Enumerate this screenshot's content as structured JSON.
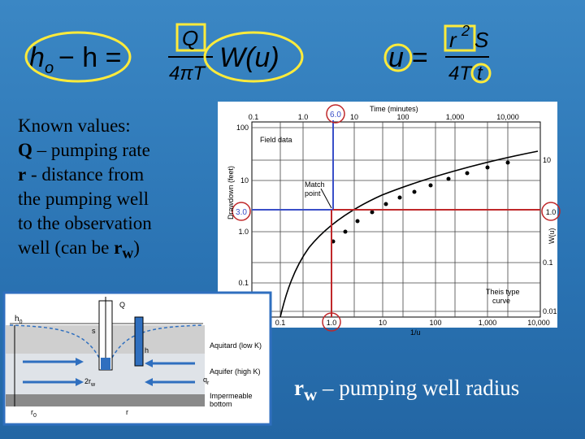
{
  "equations": {
    "theis": {
      "lhs_h": "h",
      "lhs_sub": "o",
      "lhs_rest": "− h =",
      "numerator": "Q",
      "denominator": "4πT",
      "function": "W(u)"
    },
    "u": {
      "lhs": "u =",
      "r": "r",
      "exponent": "2",
      "s": "S",
      "denominator": "4T",
      "t": "t"
    }
  },
  "known_values": {
    "heading": "Known values:",
    "items": [
      {
        "term": "Q",
        "text": " – pumping rate"
      },
      {
        "term": "r",
        "text_lines": [
          " - distance from",
          "the pumping well",
          "to the observation",
          "well (can be "
        ],
        "sub_term": "r",
        "sub": "w",
        "close": ")"
      }
    ]
  },
  "type_curve_figure": {
    "top_axis_label": "Time (minutes)",
    "top_ticks": [
      "0.1",
      "1.0",
      "10",
      "100",
      "1,000",
      "10,000"
    ],
    "left_axis_label": "Drawdown (feet)",
    "left_ticks": [
      "100",
      "10",
      "1.0",
      "0.1"
    ],
    "right_axis_label": "W(u)",
    "right_ticks": [
      "10",
      "1.0",
      "0.1",
      "0.01"
    ],
    "bottom_axis_label": "1/u",
    "bottom_ticks": [
      "0.1",
      "1.0",
      "10",
      "100",
      "1,000",
      "10,000"
    ],
    "field_data": "Field data",
    "match_point": [
      "Match",
      "point"
    ],
    "type_curve": [
      "Theis type",
      "curve"
    ],
    "match_values": {
      "time": "6.0",
      "drawdown": "3.0",
      "inverse_u": "1.0",
      "w_u": "1.0"
    }
  },
  "well_diagram": {
    "q": "Q",
    "h0": "h",
    "h0_sub": "0",
    "s": "s",
    "h": "h",
    "aquitard": "Aquitard (low K)",
    "aquifer": "Aquifer (high K)",
    "well_diameter": "2r",
    "well_diameter_sub": "w",
    "flow": "q",
    "flow_sub": "r",
    "bottom": [
      "Impermeable",
      "bottom"
    ],
    "r0": "r",
    "r0_sub": "0",
    "r": "r"
  },
  "footnote": {
    "term": "r",
    "sub": "w",
    "text": " – pumping well radius"
  }
}
